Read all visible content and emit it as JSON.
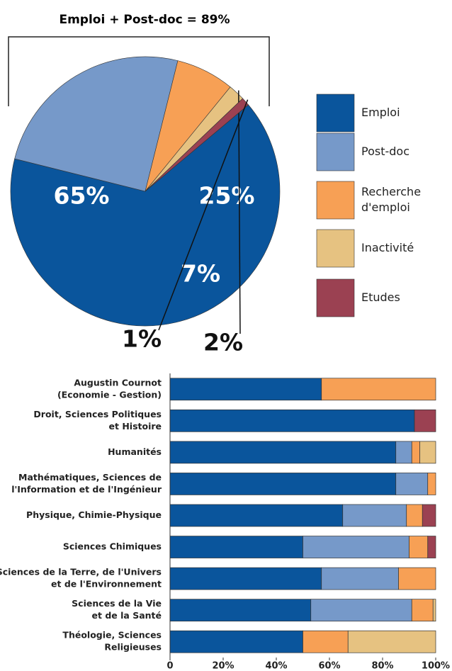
{
  "chart_data": [
    {
      "type": "pie",
      "title": "Emploi + Post-doc = 89%",
      "labels": [
        [
          "Emploi"
        ],
        [
          "Post-doc"
        ],
        [
          "Recherche",
          "d'emploi"
        ],
        [
          "Inactivité"
        ],
        [
          "Etudes"
        ]
      ],
      "values": [
        65,
        25,
        7,
        2,
        1
      ],
      "value_labels": [
        "65%",
        "25%",
        "7%",
        "2%",
        "1%"
      ],
      "colors": [
        "#0a559c",
        "#7699c9",
        "#f7a055",
        "#e6c281",
        "#9b4152"
      ],
      "legend": "right"
    },
    {
      "type": "stacked_barh",
      "categories": [
        [
          "Augustin Cournot",
          "(Economie - Gestion)"
        ],
        [
          "Droit, Sciences Politiques",
          "et Histoire"
        ],
        [
          "Humanités"
        ],
        [
          "Mathématiques, Sciences de",
          "l'Information et de l'Ingénieur"
        ],
        [
          "Physique, Chimie-Physique"
        ],
        [
          "Sciences Chimiques"
        ],
        [
          "Sciences de la Terre, de l'Univers",
          "et de l'Environnement"
        ],
        [
          "Sciences de la Vie",
          "et de la Santé"
        ],
        [
          "Théologie, Sciences",
          "Religieuses"
        ]
      ],
      "series": [
        {
          "color": "#0a559c",
          "values": [
            57,
            92,
            85,
            85,
            65,
            50,
            57,
            53,
            50
          ]
        },
        {
          "color": "#7699c9",
          "values": [
            0,
            0,
            6,
            12,
            24,
            40,
            29,
            38,
            0
          ]
        },
        {
          "color": "#f7a055",
          "values": [
            43,
            0,
            3,
            3,
            6,
            7,
            14,
            8,
            17
          ]
        },
        {
          "color": "#e6c281",
          "values": [
            0,
            0,
            6,
            0,
            0,
            0,
            0,
            1,
            33
          ]
        },
        {
          "color": "#9b4152",
          "values": [
            0,
            8,
            0,
            0,
            5,
            3,
            0,
            0,
            0
          ]
        }
      ],
      "xlim": [
        0,
        100
      ],
      "xticks": [
        0,
        {
          "value": 20,
          "label": "20%"
        },
        {
          "value": 40,
          "label": "40%"
        },
        {
          "value": 60,
          "label": "60%"
        },
        {
          "value": 80,
          "label": "80%"
        },
        {
          "value": 100,
          "label": "100%"
        }
      ]
    }
  ]
}
